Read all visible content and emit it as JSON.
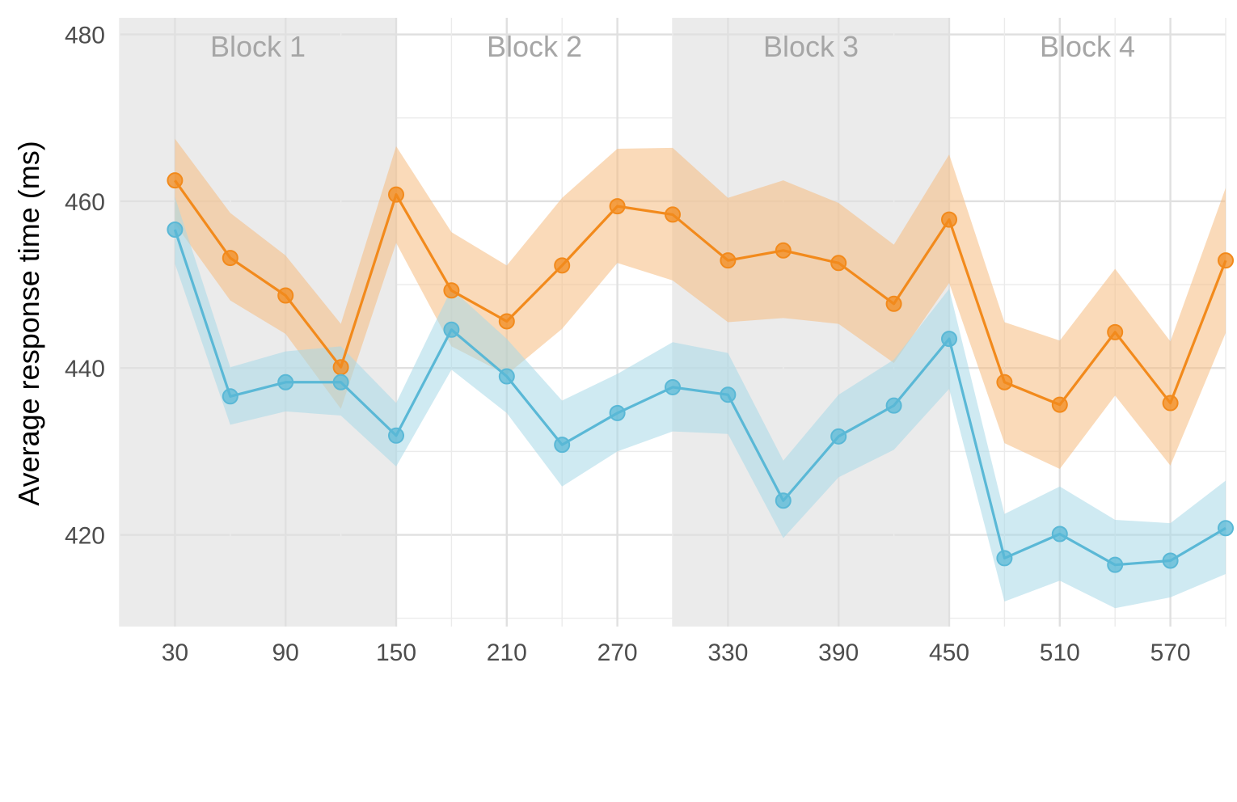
{
  "chart_data": {
    "type": "line",
    "title": "",
    "xlabel": "",
    "ylabel": "Average response time (ms)",
    "xlim": [
      0,
      600
    ],
    "ylim": [
      409,
      482
    ],
    "x_ticks": [
      30,
      90,
      150,
      210,
      270,
      330,
      390,
      450,
      510,
      570
    ],
    "y_ticks": [
      420,
      440,
      460,
      480
    ],
    "grid": true,
    "legend": "none",
    "blocks": [
      {
        "label": "Block 1",
        "x_start": 0,
        "x_end": 150,
        "shaded": true
      },
      {
        "label": "Block 2",
        "x_start": 150,
        "x_end": 300,
        "shaded": false
      },
      {
        "label": "Block 3",
        "x_start": 300,
        "x_end": 450,
        "shaded": true
      },
      {
        "label": "Block 4",
        "x_start": 450,
        "x_end": 600,
        "shaded": false
      }
    ],
    "x": [
      30,
      60,
      90,
      120,
      150,
      180,
      210,
      240,
      270,
      300,
      330,
      360,
      390,
      420,
      450,
      480,
      510,
      540,
      570,
      600
    ],
    "series": [
      {
        "color": "#f28a1c",
        "band_color": "#f6bc80",
        "values": [
          462.5,
          453.2,
          448.7,
          440.1,
          460.8,
          449.3,
          445.6,
          452.3,
          459.4,
          458.4,
          452.9,
          454.1,
          452.6,
          447.7,
          457.8,
          438.3,
          435.6,
          444.3,
          435.8,
          452.9
        ],
        "upper": [
          467.5,
          458.6,
          453.5,
          445.3,
          466.6,
          456.3,
          452.3,
          460.4,
          466.3,
          466.4,
          460.4,
          462.5,
          459.8,
          454.8,
          465.6,
          445.5,
          443.3,
          451.9,
          443.2,
          461.6
        ],
        "lower": [
          457.3,
          448.1,
          444.1,
          435.1,
          455.0,
          442.6,
          439.2,
          444.7,
          452.6,
          450.5,
          445.5,
          446.0,
          445.3,
          440.6,
          450.2,
          431.0,
          427.9,
          436.7,
          428.3,
          444.2
        ]
      },
      {
        "color": "#5ab8d6",
        "band_color": "#a8d8e8",
        "values": [
          456.6,
          436.6,
          438.3,
          438.3,
          431.9,
          444.6,
          439.0,
          430.8,
          434.6,
          437.7,
          436.8,
          424.1,
          431.8,
          435.5,
          443.5,
          417.2,
          420.1,
          416.4,
          416.9,
          420.8
        ],
        "upper": [
          460.5,
          440.1,
          442.0,
          442.6,
          435.8,
          449.5,
          443.5,
          436.1,
          439.3,
          443.1,
          441.8,
          428.9,
          436.8,
          441.0,
          449.5,
          422.5,
          425.8,
          421.8,
          421.4,
          426.5
        ],
        "lower": [
          452.5,
          433.2,
          434.8,
          434.3,
          428.2,
          439.8,
          434.6,
          425.8,
          430.0,
          432.4,
          432.1,
          419.6,
          426.9,
          430.2,
          437.5,
          412.0,
          414.5,
          411.2,
          412.5,
          415.3
        ]
      }
    ]
  }
}
